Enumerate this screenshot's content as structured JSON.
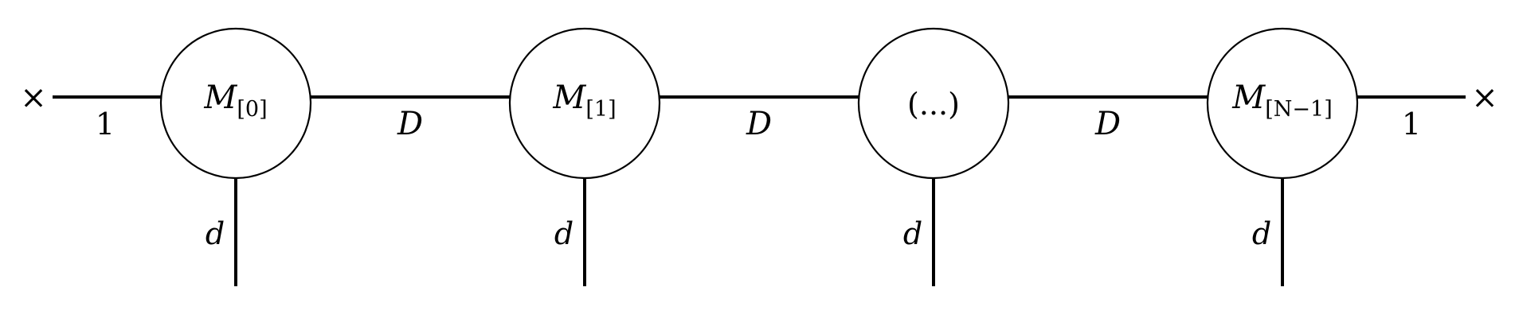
{
  "diagram": {
    "type": "matrix-product-state tensor network",
    "nodes": [
      {
        "main": "M",
        "sub": "[0]"
      },
      {
        "main": "M",
        "sub": "[1]"
      },
      {
        "main": "(...)",
        "sub": ""
      },
      {
        "main": "M",
        "sub": "[N−1]"
      }
    ],
    "bond_labels": [
      "1",
      "D",
      "D",
      "D",
      "1"
    ],
    "physical_labels": [
      "d",
      "d",
      "d",
      "d"
    ],
    "end_markers": [
      "×",
      "×"
    ]
  }
}
